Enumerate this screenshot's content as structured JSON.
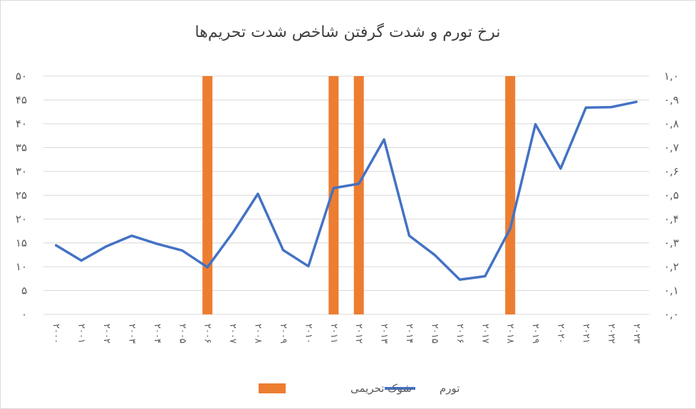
{
  "chart_data": {
    "type": "line",
    "title": "نرخ تورم و شدت گرفتن شاخص شدت تحریم‌ها",
    "categories": [
      "۲۰۰۰",
      "۲۰۰۱",
      "۲۰۰۲",
      "۲۰۰۳",
      "۲۰۰۴",
      "۲۰۰۵",
      "۲۰۰۶",
      "۲۰۰۷",
      "۲۰۰۸",
      "۲۰۰۹",
      "۲۰۱۰",
      "۲۰۱۱",
      "۲۰۱۲",
      "۲۰۱۳",
      "۲۰۱۴",
      "۲۰۱۵",
      "۲۰۱۶",
      "۲۰۱۷",
      "۲۰۱۸",
      "۲۰۱۹",
      "۲۰۲۰",
      "۲۰۲۱",
      "۲۰۲۲",
      "۲۰۲۳"
    ],
    "series": [
      {
        "name": "تورم",
        "axis": "left",
        "color": "#4472C4",
        "values": [
          14.5,
          11.3,
          14.3,
          16.5,
          14.8,
          13.4,
          9.9,
          17.1,
          25.3,
          13.5,
          10.1,
          26.5,
          27.4,
          36.7,
          16.5,
          12.5,
          7.3,
          8.0,
          18.0,
          39.9,
          30.6,
          43.4,
          43.5,
          44.6
        ]
      },
      {
        "name": "شوک تحریمی",
        "axis": "right",
        "type": "bar",
        "color": "#ED7D31",
        "values": [
          0,
          0,
          0,
          0,
          0,
          0,
          1,
          0,
          0,
          0,
          0,
          1,
          1,
          0,
          0,
          0,
          0,
          0,
          1,
          0,
          0,
          0,
          0,
          0
        ]
      }
    ],
    "y_left": {
      "range": [
        0,
        50
      ],
      "ticks": [
        "۰",
        "۵",
        "۱۰",
        "۱۵",
        "۲۰",
        "۲۵",
        "۳۰",
        "۳۵",
        "۴۰",
        "۴۵",
        "۵۰"
      ]
    },
    "y_right": {
      "range": [
        0,
        1
      ],
      "ticks": [
        "۰,۰",
        "۰,۱",
        "۰,۲",
        "۰,۳",
        "۰,۴",
        "۰,۵",
        "۰,۶",
        "۰,۷",
        "۰,۸",
        "۰,۹",
        "۱,۰"
      ]
    },
    "grid": true,
    "legend": {
      "position": "bottom",
      "entries": [
        "تورم",
        "شوک تحریمی"
      ]
    }
  }
}
